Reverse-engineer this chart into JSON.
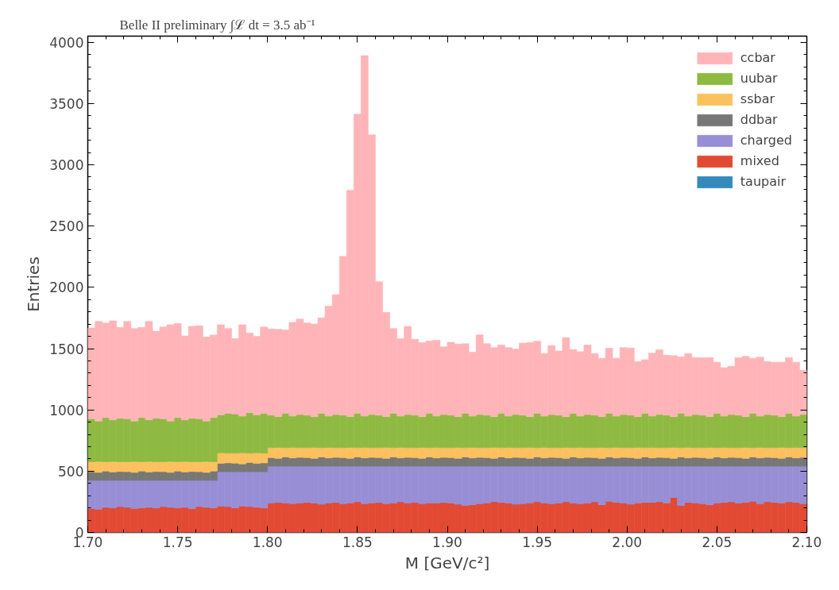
{
  "chart_data": {
    "type": "bar",
    "stacked": true,
    "title": "Belle II preliminary ∫ℒ dt = 3.5 ab⁻¹",
    "xlabel": "M [GeV/c²]",
    "ylabel": "Entries",
    "x": [
      1.702,
      1.706,
      1.71,
      1.714,
      1.718,
      1.722,
      1.726,
      1.73,
      1.734,
      1.738,
      1.742,
      1.746,
      1.75,
      1.754,
      1.758,
      1.762,
      1.766,
      1.77,
      1.774,
      1.778,
      1.782,
      1.786,
      1.79,
      1.794,
      1.798,
      1.802,
      1.806,
      1.81,
      1.814,
      1.818,
      1.822,
      1.826,
      1.83,
      1.834,
      1.838,
      1.842,
      1.846,
      1.85,
      1.854,
      1.858,
      1.862,
      1.866,
      1.87,
      1.874,
      1.878,
      1.882,
      1.886,
      1.89,
      1.894,
      1.898,
      1.902,
      1.906,
      1.91,
      1.914,
      1.918,
      1.922,
      1.926,
      1.93,
      1.934,
      1.938,
      1.942,
      1.946,
      1.95,
      1.954,
      1.958,
      1.962,
      1.966,
      1.97,
      1.974,
      1.978,
      1.982,
      1.986,
      1.99,
      1.994,
      1.998,
      2.002,
      2.006,
      2.01,
      2.014,
      2.018,
      2.022,
      2.026,
      2.03,
      2.034,
      2.038,
      2.042,
      2.046,
      2.05,
      2.054,
      2.058,
      2.062,
      2.066,
      2.07,
      2.074,
      2.078,
      2.082,
      2.086,
      2.09,
      2.094,
      2.098
    ],
    "series": [
      {
        "name": "taupair",
        "color": "#348abd",
        "values": [
          0,
          0,
          0,
          0,
          0,
          0,
          0,
          0,
          0,
          0,
          0,
          0,
          0,
          0,
          0,
          0,
          0,
          0,
          0,
          0,
          0,
          0,
          0,
          0,
          0,
          0,
          0,
          0,
          0,
          0,
          0,
          0,
          0,
          0,
          0,
          0,
          0,
          0,
          0,
          0,
          0,
          0,
          0,
          0,
          0,
          0,
          0,
          0,
          0,
          0,
          0,
          0,
          0,
          0,
          0,
          0,
          0,
          0,
          0,
          0,
          0,
          0,
          0,
          0,
          0,
          0,
          0,
          0,
          0,
          0,
          0,
          0,
          0,
          0,
          0,
          0,
          0,
          0,
          0,
          0,
          0,
          0,
          0,
          0,
          0,
          0,
          0,
          0,
          0,
          0,
          0,
          0,
          0,
          0,
          0,
          0,
          0,
          0,
          0,
          0
        ]
      },
      {
        "name": "mixed",
        "color": "#e24a33",
        "values": [
          195,
          190,
          205,
          200,
          210,
          205,
          195,
          200,
          205,
          200,
          210,
          205,
          200,
          205,
          195,
          210,
          205,
          200,
          215,
          210,
          200,
          215,
          210,
          205,
          200,
          240,
          245,
          240,
          235,
          240,
          245,
          240,
          230,
          240,
          245,
          235,
          240,
          250,
          235,
          240,
          245,
          235,
          240,
          250,
          240,
          245,
          235,
          240,
          240,
          245,
          240,
          230,
          220,
          225,
          235,
          240,
          250,
          245,
          240,
          230,
          235,
          240,
          250,
          240,
          235,
          240,
          250,
          240,
          235,
          240,
          250,
          225,
          255,
          245,
          240,
          230,
          240,
          245,
          245,
          250,
          240,
          285,
          220,
          245,
          240,
          235,
          225,
          240,
          245,
          250,
          240,
          245,
          255,
          235,
          250,
          245,
          240,
          250,
          245,
          235
        ]
      },
      {
        "name": "charged",
        "color": "#988ed5",
        "values": [
          230,
          235,
          220,
          225,
          215,
          220,
          230,
          225,
          220,
          225,
          215,
          220,
          225,
          220,
          230,
          215,
          220,
          225,
          280,
          285,
          295,
          280,
          285,
          290,
          295,
          300,
          295,
          300,
          305,
          300,
          295,
          300,
          310,
          300,
          295,
          305,
          300,
          290,
          305,
          300,
          295,
          305,
          300,
          290,
          300,
          295,
          305,
          300,
          300,
          295,
          300,
          310,
          320,
          315,
          305,
          300,
          290,
          295,
          300,
          310,
          305,
          300,
          290,
          300,
          305,
          300,
          290,
          300,
          305,
          300,
          290,
          315,
          285,
          295,
          300,
          310,
          300,
          295,
          295,
          290,
          300,
          255,
          320,
          295,
          300,
          305,
          315,
          300,
          295,
          290,
          300,
          295,
          285,
          305,
          290,
          295,
          300,
          290,
          295,
          305
        ]
      },
      {
        "name": "ddbar",
        "color": "#777777",
        "values": [
          70,
          64,
          76,
          68,
          72,
          70,
          64,
          76,
          68,
          72,
          70,
          64,
          76,
          68,
          72,
          70,
          64,
          76,
          68,
          72,
          70,
          64,
          76,
          68,
          72,
          70,
          64,
          76,
          68,
          72,
          70,
          64,
          76,
          68,
          72,
          70,
          64,
          76,
          68,
          72,
          70,
          64,
          76,
          68,
          72,
          70,
          64,
          76,
          68,
          72,
          70,
          64,
          76,
          68,
          72,
          70,
          64,
          76,
          68,
          72,
          70,
          64,
          76,
          68,
          72,
          70,
          64,
          76,
          68,
          72,
          70,
          64,
          76,
          68,
          72,
          70,
          64,
          76,
          68,
          72,
          70,
          64,
          76,
          68,
          72,
          70,
          64,
          76,
          68,
          72,
          70,
          64,
          76,
          68,
          72,
          70,
          64,
          76,
          68,
          72
        ]
      },
      {
        "name": "ssbar",
        "color": "#fbc15e",
        "values": [
          82,
          90,
          76,
          86,
          80,
          82,
          90,
          76,
          86,
          80,
          82,
          90,
          76,
          86,
          80,
          82,
          90,
          76,
          86,
          80,
          82,
          90,
          76,
          86,
          80,
          82,
          90,
          76,
          86,
          80,
          82,
          90,
          76,
          86,
          80,
          82,
          90,
          76,
          86,
          80,
          82,
          90,
          76,
          86,
          80,
          82,
          90,
          76,
          86,
          80,
          82,
          90,
          76,
          86,
          80,
          82,
          90,
          76,
          86,
          80,
          82,
          90,
          76,
          86,
          80,
          82,
          90,
          76,
          86,
          80,
          82,
          90,
          76,
          86,
          80,
          82,
          90,
          76,
          86,
          80,
          82,
          90,
          76,
          86,
          80,
          82,
          90,
          76,
          86,
          80,
          82,
          90,
          76,
          86,
          80,
          82,
          90,
          76,
          86,
          80
        ]
      },
      {
        "name": "uubar",
        "color": "#8eba42",
        "values": [
          350,
          330,
          360,
          340,
          355,
          350,
          330,
          360,
          340,
          355,
          350,
          330,
          360,
          340,
          355,
          350,
          330,
          360,
          310,
          325,
          320,
          300,
          330,
          310,
          325,
          265,
          250,
          280,
          255,
          270,
          265,
          250,
          280,
          255,
          270,
          265,
          250,
          280,
          255,
          270,
          265,
          250,
          280,
          255,
          270,
          265,
          250,
          280,
          255,
          270,
          265,
          250,
          280,
          255,
          270,
          265,
          250,
          280,
          255,
          270,
          265,
          250,
          280,
          255,
          270,
          265,
          250,
          280,
          255,
          270,
          265,
          250,
          280,
          255,
          270,
          265,
          250,
          280,
          255,
          270,
          265,
          250,
          280,
          255,
          270,
          265,
          250,
          280,
          255,
          270,
          265,
          250,
          280,
          255,
          270,
          265,
          250,
          280,
          255,
          270
        ]
      },
      {
        "name": "ccbar",
        "color": "#ffb5b8",
        "values": [
          742,
          813,
          772,
          808,
          742,
          795,
          755,
          737,
          803,
          710,
          750,
          786,
          769,
          684,
          750,
          760,
          686,
          674,
          736,
          692,
          614,
          746,
          651,
          641,
          705,
          704,
          714,
          681,
          765,
          779,
          752,
          757,
          779,
          898,
          978,
          1296,
          1848,
          2441,
          2942,
          2283,
          1089,
          852,
          692,
          632,
          720,
          619,
          605,
          590,
          619,
          553,
          595,
          593,
          568,
          522,
          650,
          583,
          564,
          558,
          559,
          535,
          588,
          606,
          588,
          511,
          563,
          523,
          646,
          521,
          526,
          568,
          503,
          477,
          531,
          472,
          546,
          548,
          451,
          438,
          514,
          528,
          490,
          499,
          460,
          511,
          465,
          468,
          483,
          417,
          396,
          394,
          468,
          493,
          449,
          481,
          433,
          432,
          445,
          455,
          440,
          361
        ]
      }
    ],
    "xlim": [
      1.7,
      2.1
    ],
    "ylim": [
      0,
      4050
    ],
    "xticks": [
      {
        "value": 1.7,
        "label": "1.70"
      },
      {
        "value": 1.75,
        "label": "1.75"
      },
      {
        "value": 1.8,
        "label": "1.80"
      },
      {
        "value": 1.85,
        "label": "1.85"
      },
      {
        "value": 1.9,
        "label": "1.90"
      },
      {
        "value": 1.95,
        "label": "1.95"
      },
      {
        "value": 2.0,
        "label": "2.00"
      },
      {
        "value": 2.05,
        "label": "2.05"
      },
      {
        "value": 2.1,
        "label": "2.10"
      }
    ],
    "yticks": [
      0,
      500,
      1000,
      1500,
      2000,
      2500,
      3000,
      3500,
      4000
    ],
    "grid": false,
    "legend": "top right"
  }
}
